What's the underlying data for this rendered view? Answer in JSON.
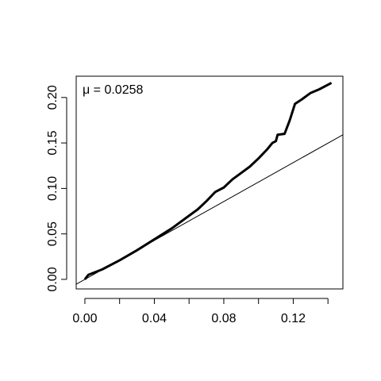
{
  "chart_data": {
    "type": "line",
    "annotation": "μ = 0.0258",
    "series": [
      {
        "color": "#000000",
        "x": [
          0.0,
          0.002,
          0.01,
          0.02,
          0.03,
          0.04,
          0.05,
          0.06,
          0.065,
          0.07,
          0.075,
          0.08,
          0.085,
          0.09,
          0.095,
          0.1,
          0.105,
          0.108,
          0.11,
          0.111,
          0.115,
          0.118,
          0.121,
          0.125,
          0.13,
          0.135,
          0.142
        ],
        "values": [
          0.0,
          0.005,
          0.011,
          0.021,
          0.032,
          0.044,
          0.056,
          0.07,
          0.077,
          0.086,
          0.096,
          0.101,
          0.11,
          0.117,
          0.124,
          0.133,
          0.143,
          0.15,
          0.152,
          0.159,
          0.16,
          0.175,
          0.193,
          0.198,
          0.205,
          0.209,
          0.216
        ]
      }
    ],
    "reference_line": {
      "intercept": 0,
      "slope": 1.07,
      "color": "#000000"
    },
    "xlim": [
      -0.005,
      0.1486
    ],
    "ylim": [
      -0.0105,
      0.2234
    ],
    "xticks": [
      {
        "value": 0,
        "label": "0.00"
      },
      {
        "value": 0.04,
        "label": "0.04"
      },
      {
        "value": 0.08,
        "label": "0.08"
      },
      {
        "value": 0.12,
        "label": "0.12"
      }
    ],
    "xticks_minor": [
      0.02,
      0.06,
      0.1,
      0.14
    ],
    "yticks": [
      {
        "value": 0,
        "label": "0.00"
      },
      {
        "value": 0.05,
        "label": "0.05"
      },
      {
        "value": 0.1,
        "label": "0.10"
      },
      {
        "value": 0.15,
        "label": "0.15"
      },
      {
        "value": 0.2,
        "label": "0.20"
      }
    ],
    "grid": false
  }
}
